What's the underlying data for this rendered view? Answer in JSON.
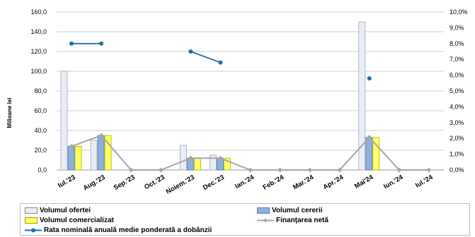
{
  "chart_data": {
    "type": "bar",
    "categories": [
      "Iul.'23",
      "Aug.'23",
      "Sep.'23",
      "Oct.'23",
      "Noiem.'23",
      "Dec.'23",
      "Ian.'24",
      "Feb.'24",
      "Mar.'24",
      "Apr.'24",
      "Mai'24",
      "Iun.'24",
      "Iul.'24"
    ],
    "ylabel": "Milioane lei",
    "ylim": [
      0,
      160
    ],
    "y_ticks": [
      "0,0",
      "20,0",
      "40,0",
      "60,0",
      "80,0",
      "100,0",
      "120,0",
      "140,0",
      "160,0"
    ],
    "y2lim": [
      0,
      10
    ],
    "y2_ticks": [
      "0,0%",
      "1,0%",
      "2,0%",
      "3,0%",
      "4,0%",
      "5,0%",
      "6,0%",
      "7,0%",
      "8,0%",
      "9,0%",
      "10,0%"
    ],
    "grid": true,
    "legend_position": "bottom",
    "series": [
      {
        "name": "Volumul ofertei",
        "kind": "bar",
        "color": "#e9edf5",
        "values": [
          100,
          30,
          0,
          0,
          25,
          15,
          0,
          0,
          0,
          0,
          150,
          0,
          0
        ]
      },
      {
        "name": "Volumul cererii",
        "kind": "bar",
        "color": "#8eb0dc",
        "values": [
          24,
          35,
          0,
          0,
          12,
          12,
          0,
          0,
          0,
          0,
          33,
          0,
          0
        ]
      },
      {
        "name": "Volumul comercializat",
        "kind": "bar",
        "color": "#ffff66",
        "values": [
          24,
          35,
          0,
          0,
          12,
          12,
          0,
          0,
          0,
          0,
          33,
          0,
          0
        ]
      },
      {
        "name": "Finanțarea netă",
        "kind": "line",
        "axis": "left",
        "color": "#a6a6a6",
        "values": [
          24,
          35,
          0,
          0,
          12,
          12,
          0,
          0,
          0,
          0,
          33,
          0,
          0
        ]
      },
      {
        "name": "Rata nominală anuală medie ponderată a dobânzii",
        "kind": "line",
        "axis": "right",
        "color": "#1f6fa8",
        "values": [
          8.0,
          8.0,
          null,
          null,
          7.5,
          6.8,
          null,
          null,
          null,
          null,
          5.8,
          null,
          null
        ]
      }
    ]
  }
}
